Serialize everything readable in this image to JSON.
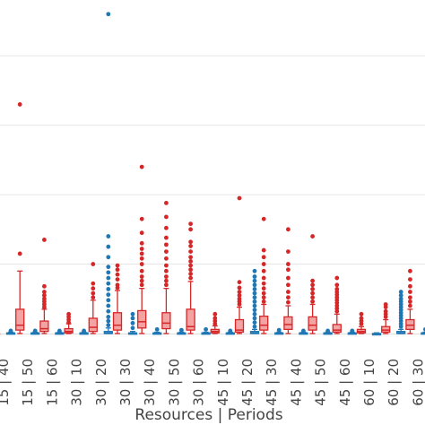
{
  "chart_data": {
    "type": "box",
    "xlabel": "Resources | Periods",
    "categories": [
      "15 | 40",
      "15 | 50",
      "15 | 60",
      "30 | 10",
      "30 | 20",
      "30 | 30",
      "30 | 40",
      "30 | 50",
      "30 | 60",
      "45 | 10",
      "45 | 20",
      "45 | 30",
      "45 | 40",
      "45 | 50",
      "45 | 60",
      "60 | 10",
      "60 | 20",
      "60 | 30"
    ],
    "ylim": [
      0,
      470
    ],
    "grid": true,
    "colors": {
      "red": "#d62728",
      "blue": "#1f77b4",
      "red_fill": "#f4a3a3",
      "blue_fill": "#9ec7e6"
    },
    "series": [
      {
        "color": "red",
        "boxes": [
          {
            "q1": 0,
            "med": 0,
            "q3": 0,
            "whislo": 0,
            "whishi": 0,
            "fliers": []
          },
          {
            "q1": 5,
            "med": 12,
            "q3": 35,
            "whislo": 0,
            "whishi": 90,
            "fliers": [
              115,
              330
            ]
          },
          {
            "q1": 3,
            "med": 7,
            "q3": 18,
            "whislo": 0,
            "whishi": 35,
            "fliers": [
              38,
              42,
              46,
              50,
              55,
              60,
              68,
              135
            ]
          },
          {
            "q1": 1,
            "med": 3,
            "q3": 7,
            "whislo": 0,
            "whishi": 14,
            "fliers": [
              16,
              20,
              24,
              28
            ]
          },
          {
            "q1": 3,
            "med": 9,
            "q3": 22,
            "whislo": 0,
            "whishi": 48,
            "fliers": [
              52,
              58,
              65,
              72,
              100
            ]
          },
          {
            "q1": 5,
            "med": 12,
            "q3": 30,
            "whislo": 0,
            "whishi": 62,
            "fliers": [
              66,
              70,
              78,
              85,
              92,
              98
            ]
          },
          {
            "q1": 8,
            "med": 17,
            "q3": 33,
            "whislo": 0,
            "whishi": 65,
            "fliers": [
              70,
              76,
              82,
              90,
              100,
              108,
              115,
              122,
              130,
              145,
              165,
              240
            ]
          },
          {
            "q1": 7,
            "med": 15,
            "q3": 30,
            "whislo": 0,
            "whishi": 65,
            "fliers": [
              70,
              76,
              82,
              90,
              98,
              108,
              118,
              128,
              138,
              152,
              168,
              188
            ]
          },
          {
            "q1": 5,
            "med": 10,
            "q3": 35,
            "whislo": 0,
            "whishi": 75,
            "fliers": [
              80,
              86,
              92,
              98,
              104,
              110,
              118,
              126,
              132,
              150,
              158
            ]
          },
          {
            "q1": 1,
            "med": 3,
            "q3": 6,
            "whislo": 0,
            "whishi": 11,
            "fliers": [
              14,
              18,
              22,
              28
            ]
          },
          {
            "q1": 2,
            "med": 5,
            "q3": 20,
            "whislo": 0,
            "whishi": 38,
            "fliers": [
              42,
              46,
              50,
              55,
              60,
              66,
              74,
              195
            ]
          },
          {
            "q1": 5,
            "med": 12,
            "q3": 25,
            "whislo": 0,
            "whishi": 42,
            "fliers": [
              46,
              52,
              58,
              65,
              72,
              80,
              90,
              100,
              110,
              120,
              165
            ]
          },
          {
            "q1": 6,
            "med": 13,
            "q3": 24,
            "whislo": 0,
            "whishi": 40,
            "fliers": [
              45,
              52,
              60,
              70,
              80,
              92,
              100,
              118,
              150
            ]
          },
          {
            "q1": 5,
            "med": 12,
            "q3": 24,
            "whislo": 0,
            "whishi": 42,
            "fliers": [
              46,
              52,
              58,
              64,
              70,
              76,
              140
            ]
          },
          {
            "q1": 2,
            "med": 5,
            "q3": 13,
            "whislo": 0,
            "whishi": 28,
            "fliers": [
              32,
              36,
              40,
              44,
              48,
              52,
              56,
              60,
              64,
              70,
              80
            ]
          },
          {
            "q1": 1,
            "med": 3,
            "q3": 6,
            "whislo": 0,
            "whishi": 10,
            "fliers": [
              14,
              18,
              22,
              28
            ]
          },
          {
            "q1": 2,
            "med": 5,
            "q3": 10,
            "whislo": 0,
            "whishi": 20,
            "fliers": [
              24,
              28,
              32,
              38,
              42
            ]
          },
          {
            "q1": 6,
            "med": 12,
            "q3": 20,
            "whislo": 0,
            "whishi": 35,
            "fliers": [
              40,
              46,
              52,
              60,
              68,
              78,
              90
            ]
          }
        ]
      },
      {
        "color": "blue",
        "boxes": [
          {
            "q1": 0,
            "med": 0,
            "q3": 1,
            "whislo": 0,
            "whishi": 2,
            "fliers": [
              4
            ]
          },
          {
            "q1": 0,
            "med": 0,
            "q3": 1,
            "whislo": 0,
            "whishi": 2,
            "fliers": [
              4
            ]
          },
          {
            "q1": 0,
            "med": 0,
            "q3": 1,
            "whislo": 0,
            "whishi": 2,
            "fliers": [
              4
            ]
          },
          {
            "q1": 0,
            "med": 0,
            "q3": 1,
            "whislo": 0,
            "whishi": 2,
            "fliers": [
              4
            ]
          },
          {
            "q1": 0,
            "med": 1,
            "q3": 3,
            "whislo": 0,
            "whishi": 8,
            "fliers": [
              12,
              18,
              24,
              32,
              40,
              48,
              56,
              64,
              72,
              80,
              88,
              96,
              110,
              125,
              140,
              460
            ]
          },
          {
            "q1": 0,
            "med": 0,
            "q3": 1,
            "whislo": 0,
            "whishi": 3,
            "fliers": [
              8,
              15,
              22,
              28
            ]
          },
          {
            "q1": 0,
            "med": 0,
            "q3": 1,
            "whislo": 0,
            "whishi": 2,
            "fliers": [
              6
            ]
          },
          {
            "q1": 0,
            "med": 0,
            "q3": 1,
            "whislo": 0,
            "whishi": 2,
            "fliers": [
              5
            ]
          },
          {
            "q1": 0,
            "med": 0,
            "q3": 1,
            "whislo": 0,
            "whishi": 2,
            "fliers": [
              6
            ]
          },
          {
            "q1": 0,
            "med": 0,
            "q3": 1,
            "whislo": 0,
            "whishi": 2,
            "fliers": [
              4
            ]
          },
          {
            "q1": 0,
            "med": 1,
            "q3": 3,
            "whislo": 0,
            "whishi": 6,
            "fliers": [
              10,
              16,
              22,
              28,
              34,
              40,
              46,
              52,
              58,
              64,
              70,
              76,
              82,
              90
            ]
          },
          {
            "q1": 0,
            "med": 0,
            "q3": 1,
            "whislo": 0,
            "whishi": 2,
            "fliers": [
              5
            ]
          },
          {
            "q1": 0,
            "med": 0,
            "q3": 1,
            "whislo": 0,
            "whishi": 2,
            "fliers": [
              4
            ]
          },
          {
            "q1": 0,
            "med": 0,
            "q3": 1,
            "whislo": 0,
            "whishi": 2,
            "fliers": [
              4
            ]
          },
          {
            "q1": 0,
            "med": 0,
            "q3": 1,
            "whislo": 0,
            "whishi": 2,
            "fliers": [
              4
            ]
          },
          {
            "q1": 0,
            "med": 0,
            "q3": 0,
            "whislo": 0,
            "whishi": 1,
            "fliers": []
          },
          {
            "q1": 0,
            "med": 1,
            "q3": 3,
            "whislo": 0,
            "whishi": 6,
            "fliers": [
              10,
              14,
              18,
              22,
              26,
              30,
              34,
              38,
              42,
              46,
              50,
              55,
              60
            ]
          },
          {
            "q1": 0,
            "med": 0,
            "q3": 1,
            "whislo": 0,
            "whishi": 2,
            "fliers": [
              6
            ]
          }
        ]
      }
    ]
  }
}
